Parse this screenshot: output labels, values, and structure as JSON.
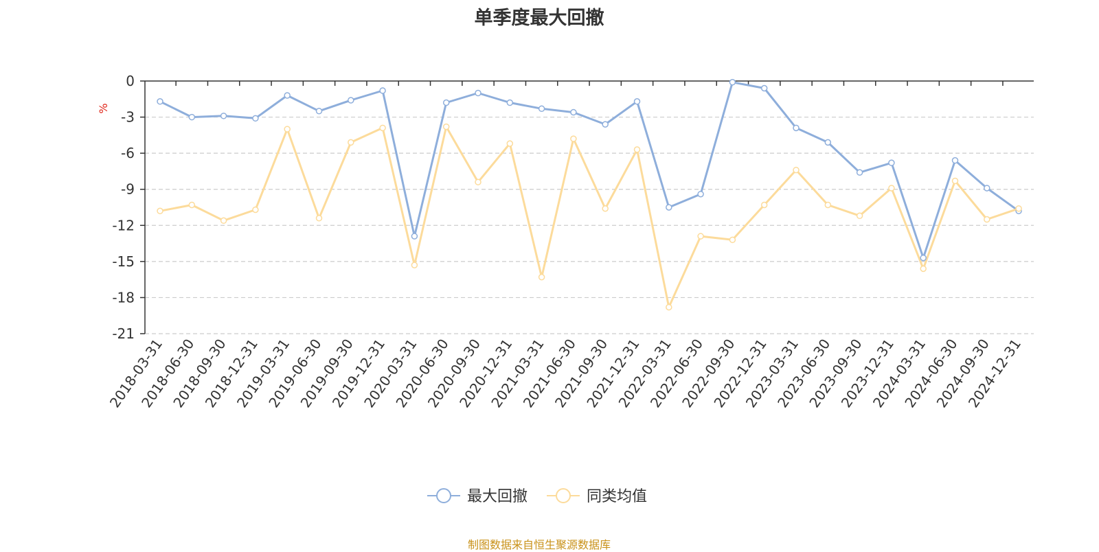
{
  "chart_data": {
    "type": "line",
    "title": "单季度最大回撤",
    "ylabel": "%",
    "ylim": [
      -21,
      0
    ],
    "yticks": [
      0,
      -3,
      -6,
      -9,
      -12,
      -15,
      -18,
      -21
    ],
    "grid": true,
    "legend_position": "bottom",
    "categories": [
      "2018-03-31",
      "2018-06-30",
      "2018-09-30",
      "2018-12-31",
      "2019-03-31",
      "2019-06-30",
      "2019-09-30",
      "2019-12-31",
      "2020-03-31",
      "2020-06-30",
      "2020-09-30",
      "2020-12-31",
      "2021-03-31",
      "2021-06-30",
      "2021-09-30",
      "2021-12-31",
      "2022-03-31",
      "2022-06-30",
      "2022-09-30",
      "2022-12-31",
      "2023-03-31",
      "2023-06-30",
      "2023-09-30",
      "2023-12-31",
      "2024-03-31",
      "2024-06-30",
      "2024-09-30",
      "2024-12-31"
    ],
    "series": [
      {
        "name": "最大回撤",
        "color": "#8eaedb",
        "values": [
          -1.7,
          -3.0,
          -2.9,
          -3.1,
          -1.2,
          -2.5,
          -1.6,
          -0.8,
          -12.9,
          -1.8,
          -1.0,
          -1.8,
          -2.3,
          -2.6,
          -3.6,
          -1.7,
          -10.5,
          -9.4,
          -0.1,
          -0.6,
          -3.9,
          -5.1,
          -7.6,
          -6.8,
          -14.7,
          -6.6,
          -8.9,
          -10.8
        ]
      },
      {
        "name": "同类均值",
        "color": "#fcdb9b",
        "values": [
          -10.8,
          -10.3,
          -11.6,
          -10.7,
          -4.0,
          -11.4,
          -5.1,
          -3.9,
          -15.3,
          -3.8,
          -8.4,
          -5.2,
          -16.3,
          -4.8,
          -10.6,
          -5.7,
          -18.8,
          -12.9,
          -13.2,
          -10.3,
          -7.4,
          -10.3,
          -11.2,
          -8.9,
          -15.6,
          -8.3,
          -11.5,
          -10.6
        ]
      }
    ]
  },
  "footer": {
    "source": "制图数据来自恒生聚源数据库"
  }
}
